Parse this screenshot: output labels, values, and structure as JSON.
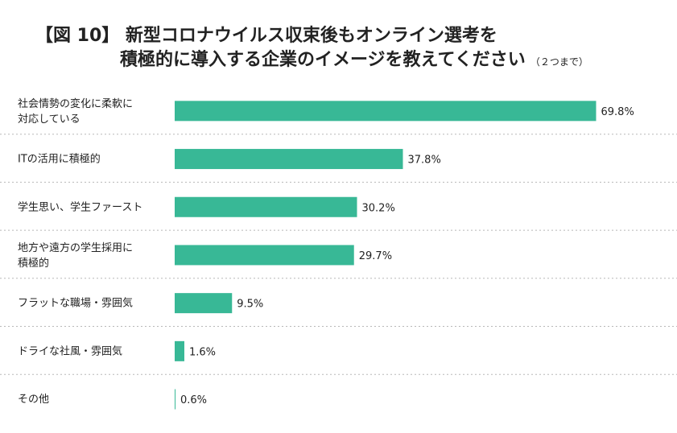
{
  "title": {
    "line1": "【図 10】 新型コロナウイルス収束後もオンライン選考を",
    "line2": "積極的に導入する企業のイメージを教えてください",
    "note": "（２つまで）"
  },
  "chart_data": {
    "type": "bar",
    "orientation": "horizontal",
    "categories": [
      [
        "社会情勢の変化に柔軟に",
        "対応している"
      ],
      [
        "ITの活用に積極的"
      ],
      [
        "学生思い、学生ファースト"
      ],
      [
        "地方や遠方の学生採用に",
        "積極的"
      ],
      [
        "フラットな職場・雰囲気"
      ],
      [
        "ドライな社風・雰囲気"
      ],
      [
        "その他"
      ]
    ],
    "values": [
      69.8,
      37.8,
      30.2,
      29.7,
      9.5,
      1.6,
      0.6
    ],
    "value_labels": [
      "69.8%",
      "37.8%",
      "30.2%",
      "29.7%",
      "9.5%",
      "1.6%",
      "0.6%"
    ],
    "unit": "%",
    "bar_color": "#38b896",
    "grid": false,
    "legend": "none"
  }
}
